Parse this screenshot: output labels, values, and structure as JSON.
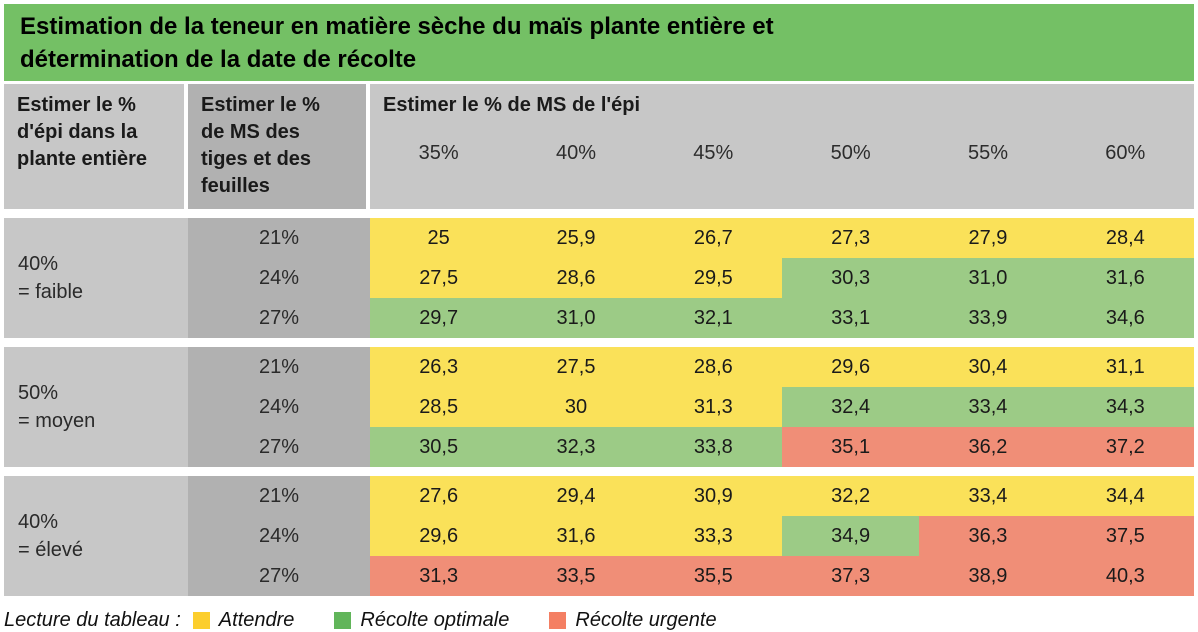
{
  "title": "Estimation de la teneur en matière sèche du maïs plante entière et\ndétermination de la date de récolte",
  "colors": {
    "title_bg": "#74c065",
    "col1_bg": "#c7c7c7",
    "col2_bg": "#b1b1b1",
    "attendre": "#fae159",
    "optimale": "#9ccb86",
    "urgente": "#f08e77",
    "legend_yellow": "#fcce2d",
    "legend_green": "#61b55a",
    "legend_red": "#f47f63"
  },
  "header": {
    "col1": "Estimer le %\nd'épi dans la\nplante entière",
    "col2": "Estimer le %\nde MS des\ntiges et des\nfeuilles",
    "data_title": "Estimer le % de MS de l'épi",
    "pcts": [
      "35%",
      "40%",
      "45%",
      "50%",
      "55%",
      "60%"
    ]
  },
  "groups": [
    {
      "label": "40%\n= faible",
      "rows": [
        {
          "ms": "21%",
          "values": [
            "25",
            "25,9",
            "26,7",
            "27,3",
            "27,9",
            "28,4"
          ],
          "states": [
            "a",
            "a",
            "a",
            "a",
            "a",
            "a"
          ]
        },
        {
          "ms": "24%",
          "values": [
            "27,5",
            "28,6",
            "29,5",
            "30,3",
            "31,0",
            "31,6"
          ],
          "states": [
            "a",
            "a",
            "a",
            "o",
            "o",
            "o"
          ]
        },
        {
          "ms": "27%",
          "values": [
            "29,7",
            "31,0",
            "32,1",
            "33,1",
            "33,9",
            "34,6"
          ],
          "states": [
            "o",
            "o",
            "o",
            "o",
            "o",
            "o"
          ]
        }
      ]
    },
    {
      "label": "50%\n= moyen",
      "rows": [
        {
          "ms": "21%",
          "values": [
            "26,3",
            "27,5",
            "28,6",
            "29,6",
            "30,4",
            "31,1"
          ],
          "states": [
            "a",
            "a",
            "a",
            "a",
            "a",
            "a"
          ]
        },
        {
          "ms": "24%",
          "values": [
            "28,5",
            "30",
            "31,3",
            "32,4",
            "33,4",
            "34,3"
          ],
          "states": [
            "a",
            "a",
            "a",
            "o",
            "o",
            "o"
          ]
        },
        {
          "ms": "27%",
          "values": [
            "30,5",
            "32,3",
            "33,8",
            "35,1",
            "36,2",
            "37,2"
          ],
          "states": [
            "o",
            "o",
            "o",
            "u",
            "u",
            "u"
          ]
        }
      ]
    },
    {
      "label": "40%\n= élevé",
      "rows": [
        {
          "ms": "21%",
          "values": [
            "27,6",
            "29,4",
            "30,9",
            "32,2",
            "33,4",
            "34,4"
          ],
          "states": [
            "a",
            "a",
            "a",
            "a",
            "a",
            "a"
          ]
        },
        {
          "ms": "24%",
          "values": [
            "29,6",
            "31,6",
            "33,3",
            "34,9",
            "36,3",
            "37,5"
          ],
          "states": [
            "a",
            "a",
            "a",
            "o",
            "u",
            "u"
          ]
        },
        {
          "ms": "27%",
          "values": [
            "31,3",
            "33,5",
            "35,5",
            "37,3",
            "38,9",
            "40,3"
          ],
          "states": [
            "u",
            "u",
            "u",
            "u",
            "u",
            "u"
          ]
        }
      ]
    }
  ],
  "legend": {
    "prefix": "Lecture du tableau :",
    "items": [
      {
        "label": "Attendre",
        "color_key": "legend_yellow"
      },
      {
        "label": "Récolte optimale",
        "color_key": "legend_green"
      },
      {
        "label": "Récolte urgente",
        "color_key": "legend_red"
      }
    ]
  }
}
